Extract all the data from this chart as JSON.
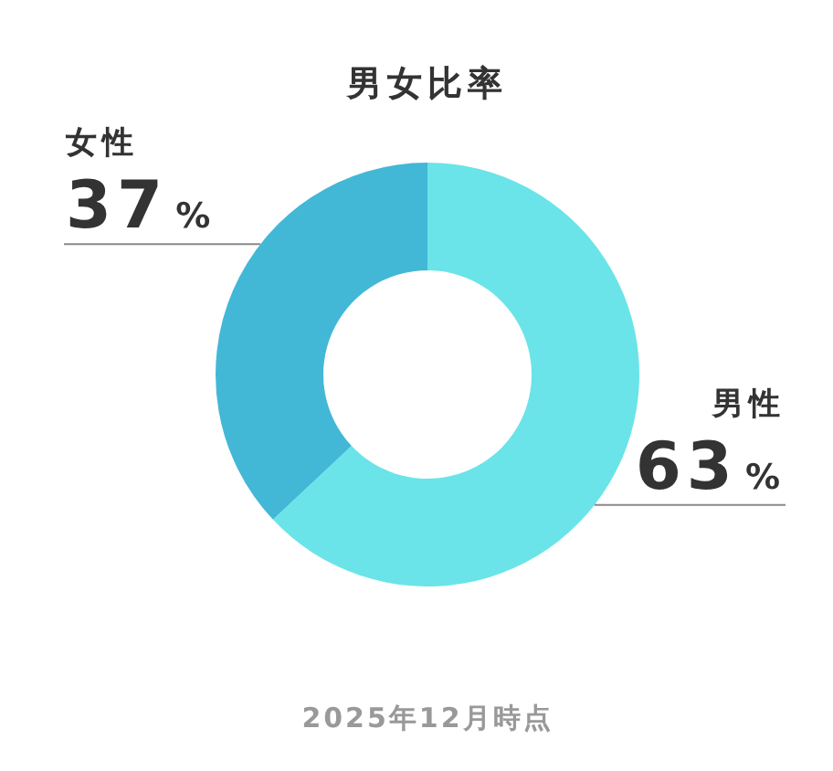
{
  "chart_data": {
    "type": "donut",
    "title": "男女比率",
    "categories": [
      "男性",
      "女性"
    ],
    "values": [
      63,
      37
    ],
    "colors": [
      "#6ae4e8",
      "#42b8d6"
    ],
    "value_labels": [
      "63%",
      "37%"
    ],
    "annotations": [
      "2025年12月時点"
    ]
  }
}
